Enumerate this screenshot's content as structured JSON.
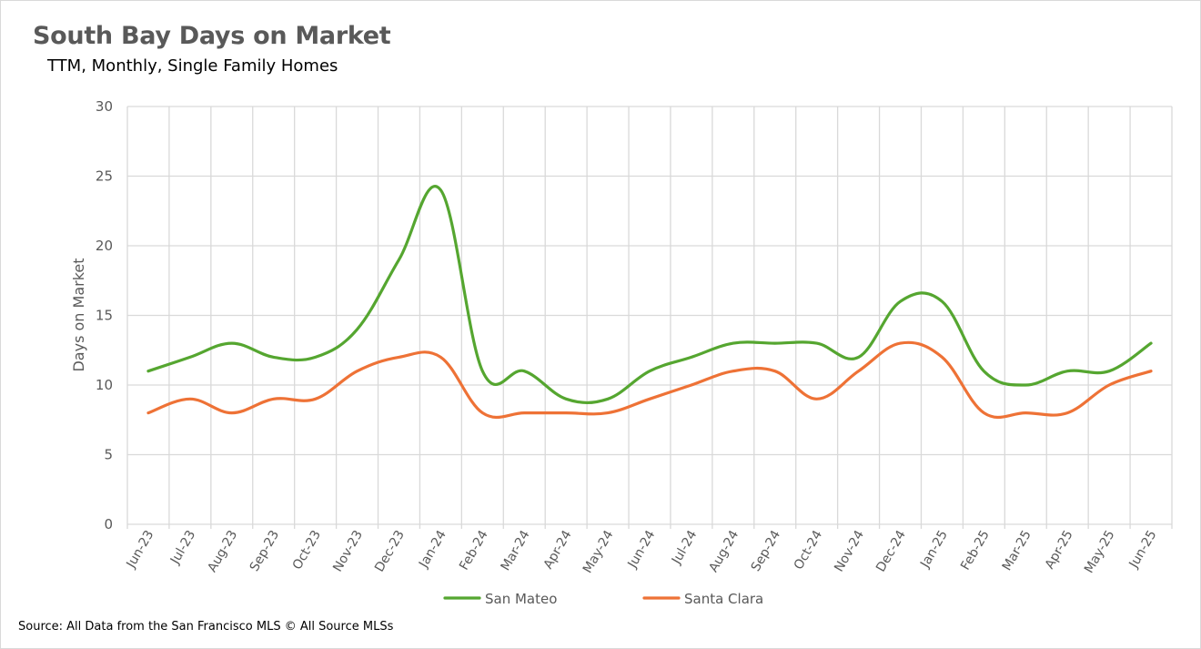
{
  "chart_data": {
    "type": "line",
    "title": "South Bay Days on Market",
    "subtitle": "TTM, Monthly, Single Family Homes",
    "xlabel": "",
    "ylabel": "Days on Market",
    "ylim": [
      0,
      30
    ],
    "yticks": [
      0,
      5,
      10,
      15,
      20,
      25,
      30
    ],
    "grid": true,
    "legend_position": "bottom",
    "categories": [
      "Jun-23",
      "Jul-23",
      "Aug-23",
      "Sep-23",
      "Oct-23",
      "Nov-23",
      "Dec-23",
      "Jan-24",
      "Feb-24",
      "Mar-24",
      "Apr-24",
      "May-24",
      "Jun-24",
      "Jul-24",
      "Aug-24",
      "Sep-24",
      "Oct-24",
      "Nov-24",
      "Dec-24",
      "Jan-25",
      "Feb-25",
      "Mar-25",
      "Apr-25",
      "May-25",
      "Jun-25"
    ],
    "series": [
      {
        "name": "San Mateo",
        "color": "#55a630",
        "values": [
          11,
          12,
          13,
          12,
          12,
          14,
          19,
          24,
          11,
          11,
          9,
          9,
          11,
          12,
          13,
          13,
          13,
          12,
          16,
          16,
          11,
          10,
          11,
          11,
          13
        ]
      },
      {
        "name": "Santa Clara",
        "color": "#ee7236",
        "values": [
          8,
          9,
          8,
          9,
          9,
          11,
          12,
          12,
          8,
          8,
          8,
          8,
          9,
          10,
          11,
          11,
          9,
          11,
          13,
          12,
          8,
          8,
          8,
          10,
          11
        ]
      }
    ]
  },
  "source": "Source: All Data from the San Francisco MLS © All Source MLSs"
}
